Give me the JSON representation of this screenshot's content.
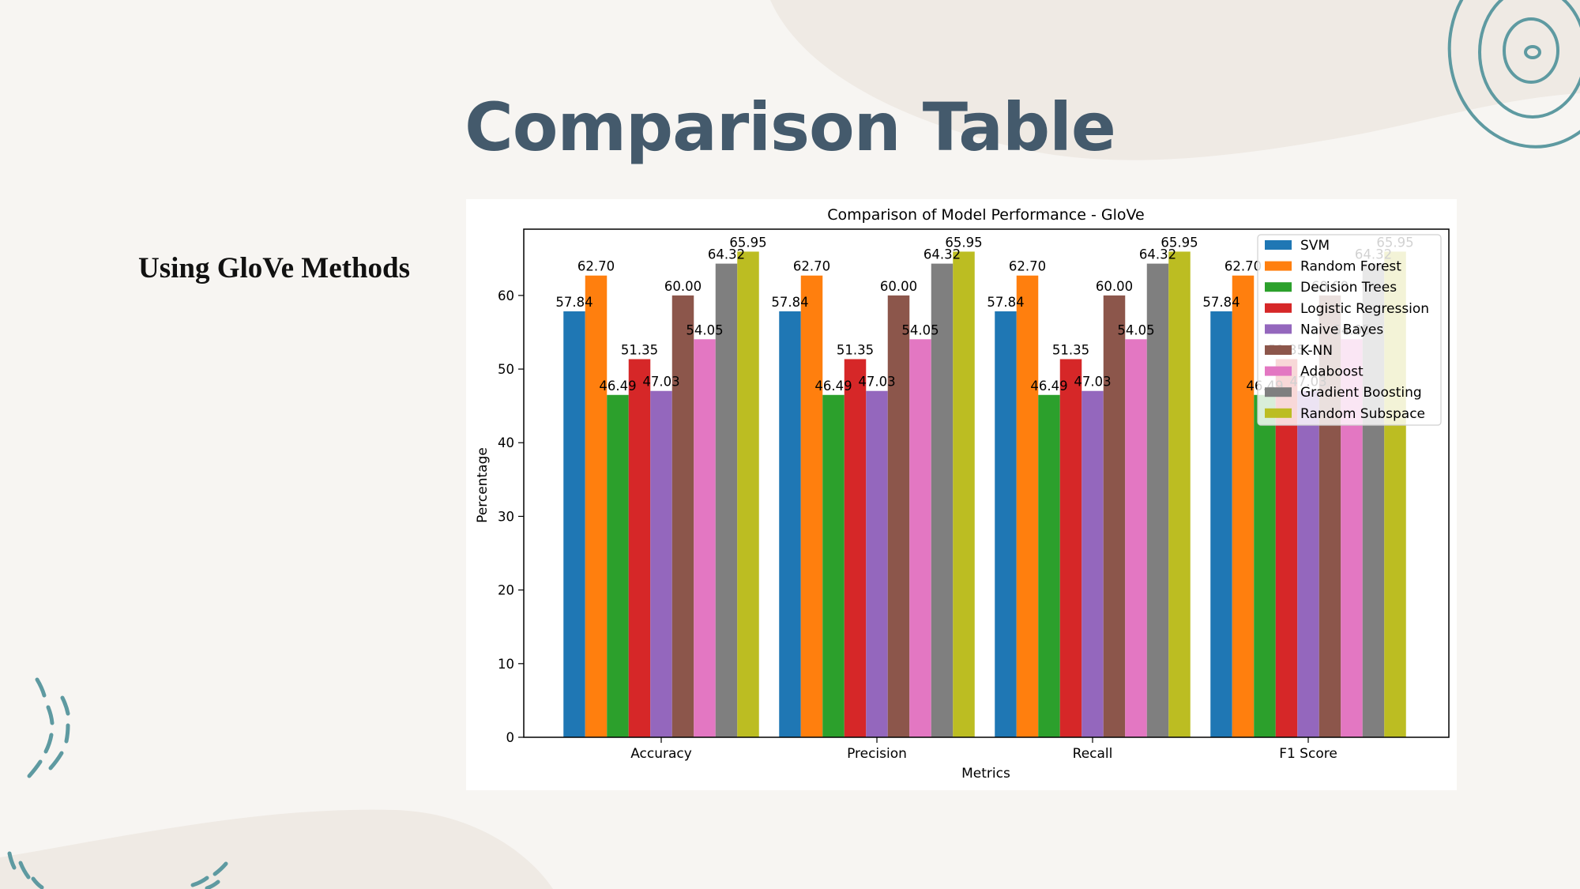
{
  "slide": {
    "title": "Comparison Table",
    "subtitle": "Using GloVe Methods"
  },
  "colors": {
    "background": "#f7f5f2",
    "blob": "#efeae4",
    "accent_teal": "#5e9aa1",
    "title": "#445a6c"
  },
  "chart_data": {
    "type": "bar",
    "title": "Comparison of Model Performance - GloVe",
    "xlabel": "Metrics",
    "ylabel": "Percentage",
    "categories": [
      "Accuracy",
      "Precision",
      "Recall",
      "F1 Score"
    ],
    "ylim": [
      0,
      69
    ],
    "yticks": [
      0,
      10,
      20,
      30,
      40,
      50,
      60
    ],
    "legend_position": "top-right",
    "grid": false,
    "series": [
      {
        "name": "SVM",
        "color": "#1f77b4",
        "values": [
          57.84,
          57.84,
          57.84,
          57.84
        ],
        "labels": [
          "57.84",
          "57.84",
          "57.84",
          "57.84"
        ]
      },
      {
        "name": "Random Forest",
        "color": "#ff7f0e",
        "values": [
          62.7,
          62.7,
          62.7,
          62.7
        ],
        "labels": [
          "62.70",
          "62.70",
          "62.70",
          "62.70"
        ]
      },
      {
        "name": "Decision Trees",
        "color": "#2ca02c",
        "values": [
          46.49,
          46.49,
          46.49,
          46.49
        ],
        "labels": [
          "46.49",
          "46.49",
          "46.49",
          "46.49"
        ]
      },
      {
        "name": "Logistic Regression",
        "color": "#d62728",
        "values": [
          51.35,
          51.35,
          51.35,
          51.35
        ],
        "labels": [
          "51.35",
          "51.35",
          "51.35",
          "51.35"
        ]
      },
      {
        "name": "Naive Bayes",
        "color": "#9467bd",
        "values": [
          47.03,
          47.03,
          47.03,
          47.03
        ],
        "labels": [
          "47.03",
          "47.03",
          "47.03",
          "47.03"
        ]
      },
      {
        "name": "K-NN",
        "color": "#8c564b",
        "values": [
          60.0,
          60.0,
          60.0,
          60.0
        ],
        "labels": [
          "60.00",
          "60.00",
          "60.00",
          "60.00"
        ]
      },
      {
        "name": "Adaboost",
        "color": "#e377c2",
        "values": [
          54.05,
          54.05,
          54.05,
          54.05
        ],
        "labels": [
          "54.05",
          "54.05",
          "54.05",
          "54.05"
        ]
      },
      {
        "name": "Gradient Boosting",
        "color": "#7f7f7f",
        "values": [
          64.32,
          64.32,
          64.32,
          64.32
        ],
        "labels": [
          "64.32",
          "64.32",
          "64.32",
          "64.32"
        ]
      },
      {
        "name": "Random Subspace",
        "color": "#bcbd22",
        "values": [
          65.95,
          65.95,
          65.95,
          65.95
        ],
        "labels": [
          "65.95",
          "65.95",
          "65.95",
          "65.95"
        ]
      }
    ]
  }
}
